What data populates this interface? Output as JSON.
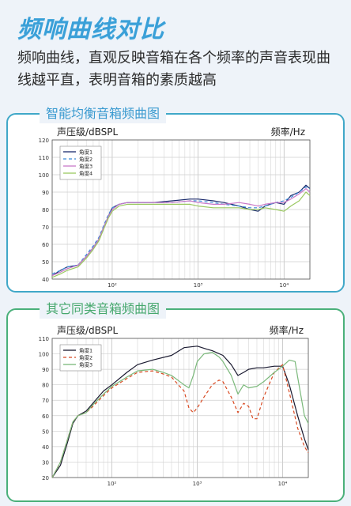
{
  "page": {
    "title": "频响曲线对比",
    "description": "频响曲线，直观反映音箱在各个频率的声音表现曲线越平直，表明音箱的素质越高"
  },
  "chart_data": [
    {
      "type": "line",
      "title": "智能均衡音箱频曲图",
      "ylabel": "声压级/dBSPL",
      "xlabel": "频率/Hz",
      "xscale": "log",
      "xlim": [
        20,
        20000
      ],
      "ylim": [
        40,
        120
      ],
      "yticks": [
        40,
        50,
        60,
        70,
        80,
        90,
        100,
        110,
        120
      ],
      "xtick_labels": [
        "10²",
        "10³",
        "10⁴"
      ],
      "xtick_values": [
        100,
        1000,
        10000
      ],
      "grid": true,
      "legend_position": "top-left",
      "series": [
        {
          "name": "角度1",
          "color": "#1a2a6c",
          "dash": "",
          "points": [
            [
              20,
              42
            ],
            [
              25,
              45
            ],
            [
              30,
              47
            ],
            [
              40,
              48
            ],
            [
              50,
              53
            ],
            [
              60,
              58
            ],
            [
              70,
              63
            ],
            [
              80,
              70
            ],
            [
              90,
              76
            ],
            [
              100,
              81
            ],
            [
              120,
              83
            ],
            [
              150,
              84
            ],
            [
              200,
              84
            ],
            [
              300,
              84
            ],
            [
              500,
              85
            ],
            [
              800,
              86
            ],
            [
              1000,
              86
            ],
            [
              1500,
              85
            ],
            [
              2000,
              84
            ],
            [
              3000,
              82
            ],
            [
              4000,
              80
            ],
            [
              5000,
              79
            ],
            [
              6000,
              82
            ],
            [
              8000,
              84
            ],
            [
              10000,
              83
            ],
            [
              12000,
              88
            ],
            [
              15000,
              90
            ],
            [
              18000,
              94
            ],
            [
              20000,
              92
            ]
          ]
        },
        {
          "name": "角度2",
          "color": "#3a8ad8",
          "dash": "4,3",
          "points": [
            [
              20,
              43
            ],
            [
              25,
              45
            ],
            [
              30,
              47
            ],
            [
              40,
              48
            ],
            [
              50,
              54
            ],
            [
              60,
              59
            ],
            [
              70,
              64
            ],
            [
              80,
              71
            ],
            [
              90,
              77
            ],
            [
              100,
              81
            ],
            [
              120,
              83
            ],
            [
              150,
              84
            ],
            [
              200,
              84
            ],
            [
              300,
              84
            ],
            [
              500,
              84
            ],
            [
              800,
              85
            ],
            [
              1000,
              85
            ],
            [
              1500,
              84
            ],
            [
              2000,
              83
            ],
            [
              3000,
              82
            ],
            [
              4000,
              81
            ],
            [
              5000,
              81
            ],
            [
              6000,
              82
            ],
            [
              8000,
              84
            ],
            [
              10000,
              85
            ],
            [
              12000,
              87
            ],
            [
              15000,
              90
            ],
            [
              18000,
              93
            ],
            [
              20000,
              92
            ]
          ]
        },
        {
          "name": "角度3",
          "color": "#c878c8",
          "dash": "",
          "points": [
            [
              20,
              42
            ],
            [
              25,
              44
            ],
            [
              30,
              46
            ],
            [
              40,
              48
            ],
            [
              50,
              53
            ],
            [
              60,
              58
            ],
            [
              70,
              63
            ],
            [
              80,
              70
            ],
            [
              90,
              76
            ],
            [
              100,
              80
            ],
            [
              120,
              83
            ],
            [
              150,
              84
            ],
            [
              200,
              84
            ],
            [
              300,
              84
            ],
            [
              500,
              84
            ],
            [
              800,
              85
            ],
            [
              1000,
              84
            ],
            [
              1500,
              83
            ],
            [
              2000,
              83
            ],
            [
              3000,
              84
            ],
            [
              4000,
              83
            ],
            [
              5000,
              82
            ],
            [
              6000,
              83
            ],
            [
              8000,
              84
            ],
            [
              10000,
              84
            ],
            [
              12000,
              86
            ],
            [
              15000,
              89
            ],
            [
              18000,
              92
            ],
            [
              20000,
              90
            ]
          ]
        },
        {
          "name": "角度4",
          "color": "#9ac860",
          "dash": "",
          "points": [
            [
              20,
              41
            ],
            [
              25,
              43
            ],
            [
              30,
              45
            ],
            [
              40,
              47
            ],
            [
              50,
              52
            ],
            [
              60,
              57
            ],
            [
              70,
              62
            ],
            [
              80,
              69
            ],
            [
              90,
              75
            ],
            [
              100,
              79
            ],
            [
              120,
              82
            ],
            [
              150,
              83
            ],
            [
              200,
              83
            ],
            [
              300,
              83
            ],
            [
              500,
              83
            ],
            [
              800,
              83
            ],
            [
              1000,
              82
            ],
            [
              1500,
              81
            ],
            [
              2000,
              81
            ],
            [
              3000,
              81
            ],
            [
              4000,
              80
            ],
            [
              5000,
              80
            ],
            [
              6000,
              81
            ],
            [
              8000,
              80
            ],
            [
              10000,
              79
            ],
            [
              12000,
              82
            ],
            [
              15000,
              85
            ],
            [
              18000,
              90
            ],
            [
              20000,
              88
            ]
          ]
        }
      ]
    },
    {
      "type": "line",
      "title": "其它同类音箱频曲图",
      "ylabel": "声压级/dBSPL",
      "xlabel": "频率/Hz",
      "xscale": "log",
      "xlim": [
        20,
        20000
      ],
      "ylim": [
        20,
        110
      ],
      "yticks": [
        20,
        30,
        40,
        50,
        60,
        70,
        80,
        90,
        100,
        110
      ],
      "xtick_labels": [
        "10²",
        "10³",
        "10⁴"
      ],
      "xtick_values": [
        100,
        1000,
        10000
      ],
      "grid": true,
      "legend_position": "top-left",
      "series": [
        {
          "name": "角度1",
          "color": "#1a1a30",
          "dash": "",
          "points": [
            [
              20,
              20
            ],
            [
              25,
              28
            ],
            [
              30,
              42
            ],
            [
              35,
              55
            ],
            [
              40,
              60
            ],
            [
              50,
              63
            ],
            [
              60,
              68
            ],
            [
              80,
              76
            ],
            [
              100,
              80
            ],
            [
              150,
              88
            ],
            [
              200,
              93
            ],
            [
              300,
              96
            ],
            [
              500,
              99
            ],
            [
              700,
              104
            ],
            [
              1000,
              105
            ],
            [
              1300,
              103
            ],
            [
              1500,
              102
            ],
            [
              2000,
              99
            ],
            [
              2500,
              93
            ],
            [
              3000,
              86
            ],
            [
              3500,
              88
            ],
            [
              4000,
              90
            ],
            [
              5000,
              91
            ],
            [
              6000,
              91
            ],
            [
              8000,
              92
            ],
            [
              10000,
              92
            ],
            [
              12000,
              80
            ],
            [
              15000,
              60
            ],
            [
              18000,
              45
            ],
            [
              20000,
              38
            ]
          ]
        },
        {
          "name": "角度2",
          "color": "#d84820",
          "dash": "4,3",
          "points": [
            [
              20,
              20
            ],
            [
              25,
              30
            ],
            [
              30,
              44
            ],
            [
              35,
              56
            ],
            [
              40,
              60
            ],
            [
              50,
              62
            ],
            [
              60,
              66
            ],
            [
              80,
              73
            ],
            [
              100,
              78
            ],
            [
              150,
              84
            ],
            [
              200,
              88
            ],
            [
              300,
              89
            ],
            [
              400,
              87
            ],
            [
              500,
              85
            ],
            [
              600,
              80
            ],
            [
              700,
              76
            ],
            [
              800,
              65
            ],
            [
              900,
              62
            ],
            [
              1000,
              65
            ],
            [
              1200,
              72
            ],
            [
              1500,
              80
            ],
            [
              1800,
              83
            ],
            [
              2000,
              82
            ],
            [
              2500,
              72
            ],
            [
              3000,
              62
            ],
            [
              3500,
              68
            ],
            [
              4000,
              66
            ],
            [
              4500,
              58
            ],
            [
              5000,
              58
            ],
            [
              6000,
              72
            ],
            [
              8000,
              88
            ],
            [
              10000,
              93
            ],
            [
              12000,
              75
            ],
            [
              15000,
              52
            ],
            [
              18000,
              40
            ],
            [
              20000,
              36
            ]
          ]
        },
        {
          "name": "角度3",
          "color": "#7ab87a",
          "dash": "",
          "points": [
            [
              20,
              20
            ],
            [
              25,
              30
            ],
            [
              30,
              44
            ],
            [
              35,
              56
            ],
            [
              40,
              60
            ],
            [
              50,
              62
            ],
            [
              60,
              67
            ],
            [
              80,
              74
            ],
            [
              100,
              79
            ],
            [
              150,
              85
            ],
            [
              200,
              89
            ],
            [
              300,
              90
            ],
            [
              400,
              88
            ],
            [
              500,
              86
            ],
            [
              700,
              80
            ],
            [
              800,
              78
            ],
            [
              900,
              86
            ],
            [
              1000,
              95
            ],
            [
              1200,
              100
            ],
            [
              1500,
              101
            ],
            [
              1800,
              98
            ],
            [
              2000,
              95
            ],
            [
              2500,
              86
            ],
            [
              3000,
              74
            ],
            [
              3500,
              80
            ],
            [
              4000,
              78
            ],
            [
              5000,
              79
            ],
            [
              6000,
              82
            ],
            [
              8000,
              88
            ],
            [
              10000,
              92
            ],
            [
              12000,
              96
            ],
            [
              14000,
              95
            ],
            [
              15000,
              85
            ],
            [
              18000,
              60
            ],
            [
              20000,
              55
            ]
          ]
        }
      ]
    }
  ]
}
